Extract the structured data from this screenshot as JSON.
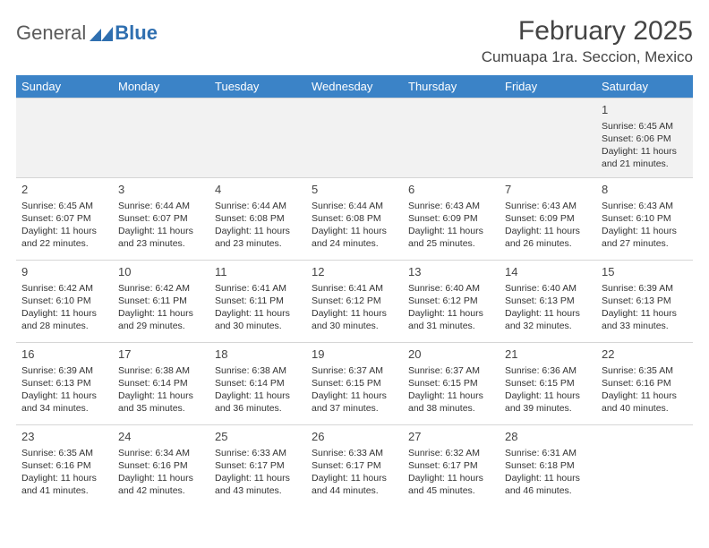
{
  "logo": {
    "text1": "General",
    "text2": "Blue"
  },
  "title": "February 2025",
  "location": "Cumuapa 1ra. Seccion, Mexico",
  "colors": {
    "header_bg": "#3b83c7",
    "header_text": "#ffffff",
    "body_text": "#333333",
    "divider": "#d6d6d6",
    "first_row_bg": "#f2f2f2",
    "logo_gray": "#5a5a5a",
    "logo_blue": "#2f6fb0"
  },
  "weekdays": [
    "Sunday",
    "Monday",
    "Tuesday",
    "Wednesday",
    "Thursday",
    "Friday",
    "Saturday"
  ],
  "weeks": [
    [
      null,
      null,
      null,
      null,
      null,
      null,
      {
        "n": "1",
        "sr": "6:45 AM",
        "ss": "6:06 PM",
        "dl": "11 hours and 21 minutes."
      }
    ],
    [
      {
        "n": "2",
        "sr": "6:45 AM",
        "ss": "6:07 PM",
        "dl": "11 hours and 22 minutes."
      },
      {
        "n": "3",
        "sr": "6:44 AM",
        "ss": "6:07 PM",
        "dl": "11 hours and 23 minutes."
      },
      {
        "n": "4",
        "sr": "6:44 AM",
        "ss": "6:08 PM",
        "dl": "11 hours and 23 minutes."
      },
      {
        "n": "5",
        "sr": "6:44 AM",
        "ss": "6:08 PM",
        "dl": "11 hours and 24 minutes."
      },
      {
        "n": "6",
        "sr": "6:43 AM",
        "ss": "6:09 PM",
        "dl": "11 hours and 25 minutes."
      },
      {
        "n": "7",
        "sr": "6:43 AM",
        "ss": "6:09 PM",
        "dl": "11 hours and 26 minutes."
      },
      {
        "n": "8",
        "sr": "6:43 AM",
        "ss": "6:10 PM",
        "dl": "11 hours and 27 minutes."
      }
    ],
    [
      {
        "n": "9",
        "sr": "6:42 AM",
        "ss": "6:10 PM",
        "dl": "11 hours and 28 minutes."
      },
      {
        "n": "10",
        "sr": "6:42 AM",
        "ss": "6:11 PM",
        "dl": "11 hours and 29 minutes."
      },
      {
        "n": "11",
        "sr": "6:41 AM",
        "ss": "6:11 PM",
        "dl": "11 hours and 30 minutes."
      },
      {
        "n": "12",
        "sr": "6:41 AM",
        "ss": "6:12 PM",
        "dl": "11 hours and 30 minutes."
      },
      {
        "n": "13",
        "sr": "6:40 AM",
        "ss": "6:12 PM",
        "dl": "11 hours and 31 minutes."
      },
      {
        "n": "14",
        "sr": "6:40 AM",
        "ss": "6:13 PM",
        "dl": "11 hours and 32 minutes."
      },
      {
        "n": "15",
        "sr": "6:39 AM",
        "ss": "6:13 PM",
        "dl": "11 hours and 33 minutes."
      }
    ],
    [
      {
        "n": "16",
        "sr": "6:39 AM",
        "ss": "6:13 PM",
        "dl": "11 hours and 34 minutes."
      },
      {
        "n": "17",
        "sr": "6:38 AM",
        "ss": "6:14 PM",
        "dl": "11 hours and 35 minutes."
      },
      {
        "n": "18",
        "sr": "6:38 AM",
        "ss": "6:14 PM",
        "dl": "11 hours and 36 minutes."
      },
      {
        "n": "19",
        "sr": "6:37 AM",
        "ss": "6:15 PM",
        "dl": "11 hours and 37 minutes."
      },
      {
        "n": "20",
        "sr": "6:37 AM",
        "ss": "6:15 PM",
        "dl": "11 hours and 38 minutes."
      },
      {
        "n": "21",
        "sr": "6:36 AM",
        "ss": "6:15 PM",
        "dl": "11 hours and 39 minutes."
      },
      {
        "n": "22",
        "sr": "6:35 AM",
        "ss": "6:16 PM",
        "dl": "11 hours and 40 minutes."
      }
    ],
    [
      {
        "n": "23",
        "sr": "6:35 AM",
        "ss": "6:16 PM",
        "dl": "11 hours and 41 minutes."
      },
      {
        "n": "24",
        "sr": "6:34 AM",
        "ss": "6:16 PM",
        "dl": "11 hours and 42 minutes."
      },
      {
        "n": "25",
        "sr": "6:33 AM",
        "ss": "6:17 PM",
        "dl": "11 hours and 43 minutes."
      },
      {
        "n": "26",
        "sr": "6:33 AM",
        "ss": "6:17 PM",
        "dl": "11 hours and 44 minutes."
      },
      {
        "n": "27",
        "sr": "6:32 AM",
        "ss": "6:17 PM",
        "dl": "11 hours and 45 minutes."
      },
      {
        "n": "28",
        "sr": "6:31 AM",
        "ss": "6:18 PM",
        "dl": "11 hours and 46 minutes."
      },
      null
    ]
  ],
  "labels": {
    "sunrise": "Sunrise: ",
    "sunset": "Sunset: ",
    "daylight": "Daylight: "
  }
}
